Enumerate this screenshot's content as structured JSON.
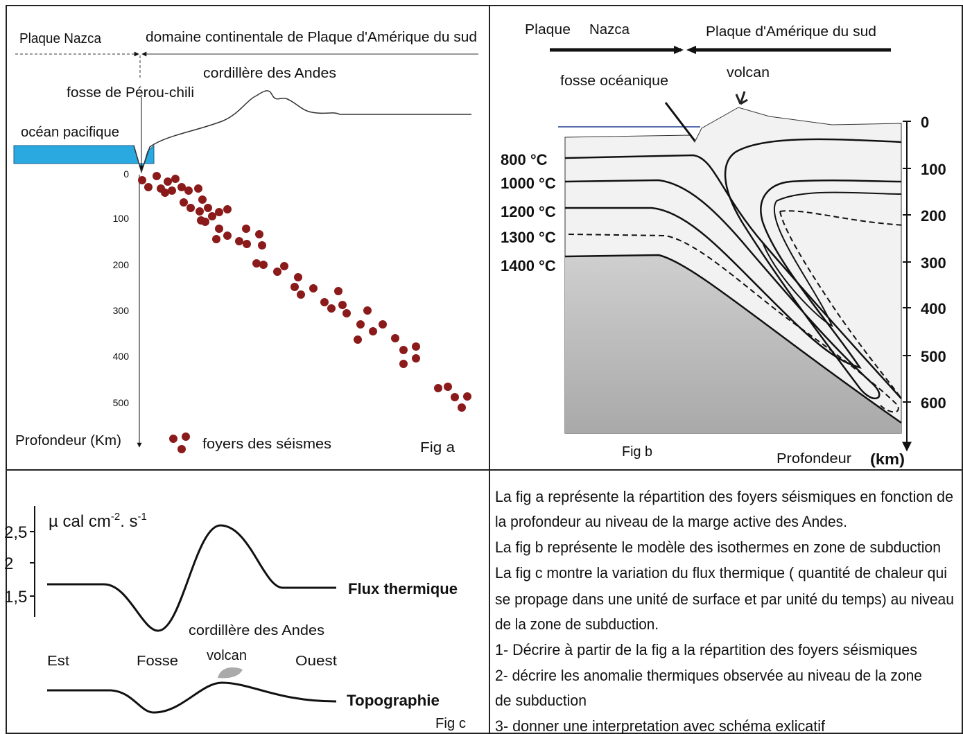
{
  "fig_a": {
    "plate_left": "Plaque Nazca",
    "plate_right": "domaine continentale de Plaque  d'Amérique du sud",
    "mountains": "cordillère des Andes",
    "trench": "fosse de Pérou-chili",
    "ocean": "océan pacifique",
    "depth_ticks": [
      "0",
      "100",
      "200",
      "300",
      "400",
      "500"
    ],
    "axis_label": "Profondeur (Km)",
    "legend": "foyers des séismes",
    "caption": "Fig  a"
  },
  "fig_b": {
    "plate_left": "Plaque",
    "plate_left_name": "Nazca",
    "plate_right": "Plaque d'Amérique du sud",
    "trench": "fosse océanique",
    "volcano": "volcan",
    "isotherms": [
      "800 °C",
      "1000 °C",
      "1200 °C",
      "1300 °C",
      "1400 °C"
    ],
    "depth_ticks": [
      "0",
      "100",
      "200",
      "300",
      "400",
      "500",
      "600"
    ],
    "caption": "Fig b",
    "axis_label": "Profondeur",
    "unit": "(km)"
  },
  "fig_c": {
    "unit_base": "µ cal cm",
    "unit_exp1": "-2",
    "unit_mid": ". s",
    "unit_exp2": "-1",
    "y_ticks": [
      "2,5",
      "2",
      "1,5"
    ],
    "curve_flux": "Flux thermique",
    "curve_topo": "Topographie",
    "east": "Est",
    "trench": "Fosse",
    "mountains": "cordillère des  Andes",
    "volcano": "volcan",
    "west": "Ouest",
    "caption": "Fig c"
  },
  "text": {
    "lines": [
      "La fig a représente la répartition des foyers séismiques en fonction de",
      "la profondeur au niveau de la marge active des Andes.",
      "La fig b représente le modèle des isothermes en zone de subduction",
      "La fig c montre la variation du flux thermique ( quantité de chaleur qui",
      "se propage dans une unité de surface et par unité du temps) au niveau",
      "de la zone de subduction.",
      "1- Décrire à partir de la fig a  la répartition des foyers séismiques",
      "2- décrire les anomalie thermiques observée au niveau de la zone",
      "de subduction",
      "3- donner une interpretation avec schéma exlicatif"
    ]
  }
}
